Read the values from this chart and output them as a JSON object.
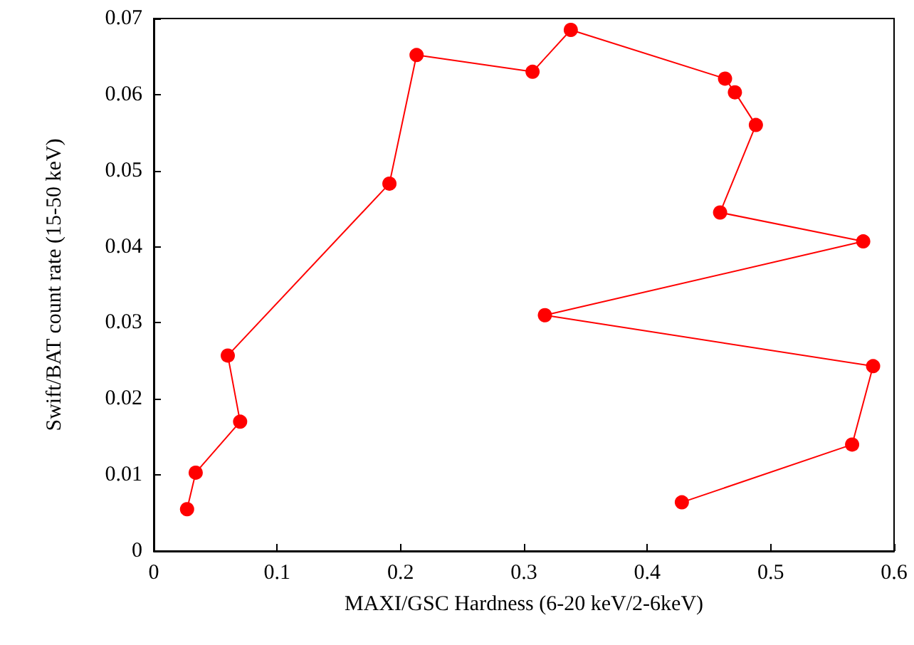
{
  "chart_data": {
    "type": "line",
    "xlabel": "MAXI/GSC Hardness (6-20 keV/2-6keV)",
    "ylabel": "Swift/BAT count rate (15-50 keV)",
    "xlim": [
      0,
      0.6
    ],
    "xticks": [
      0,
      0.1,
      0.2,
      0.3,
      0.4,
      0.5,
      0.6
    ],
    "ylim": [
      0,
      0.07
    ],
    "yticks": [
      0,
      0.01,
      0.02,
      0.03,
      0.04,
      0.05,
      0.06,
      0.07
    ],
    "grid": false,
    "marker": "circle",
    "line_style": "solid",
    "series": [
      {
        "color": "#ff0000",
        "x": [
          0.027,
          0.034,
          0.07,
          0.06,
          0.191,
          0.213,
          0.307,
          0.338,
          0.463,
          0.471,
          0.488,
          0.459,
          0.575,
          0.317,
          0.583,
          0.566,
          0.428
        ],
        "values": [
          0.0055,
          0.0103,
          0.017,
          0.0257,
          0.0483,
          0.0652,
          0.063,
          0.0685,
          0.0621,
          0.0603,
          0.056,
          0.0445,
          0.0407,
          0.031,
          0.0243,
          0.014,
          0.0064
        ]
      }
    ]
  }
}
